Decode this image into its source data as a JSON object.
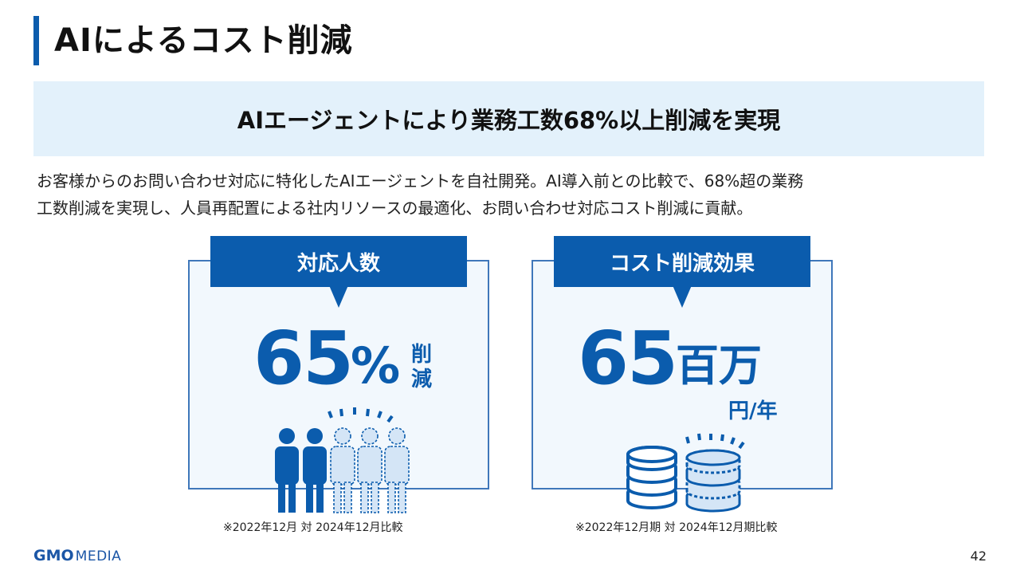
{
  "header": {
    "title": "AIによるコスト削減"
  },
  "banner": {
    "text": "AIエージェントにより業務工数68%以上削減を実現"
  },
  "description": {
    "line1": "お客様からのお問い合わせ対応に特化したAIエージェントを自社開発。AI導入前との比較で、68%超の業務",
    "line2": "工数削減を実現し、人員再配置による社内リソースの最適化、お問い合わせ対応コスト削減に貢献。"
  },
  "cards": {
    "left": {
      "tab": "対応人数",
      "value": "65",
      "unit": "%",
      "unit_vertical_1": "削",
      "unit_vertical_2": "減",
      "note": "※2022年12月 対 2024年12月比較",
      "icon": "people-icon"
    },
    "right": {
      "tab": "コスト削減効果",
      "value": "65",
      "unit": "百万",
      "unit_small": "円/年",
      "note": "※2022年12月期 対 2024年12月期比較",
      "icon": "coins-icon"
    }
  },
  "footer": {
    "logo_gmo": "GMO",
    "logo_media": "MEDIA",
    "page_number": "42"
  },
  "colors": {
    "accent": "#0b5cad",
    "banner_bg": "#e3f1fb",
    "card_bg": "#f2f8fd",
    "card_border": "#3f77ba"
  }
}
